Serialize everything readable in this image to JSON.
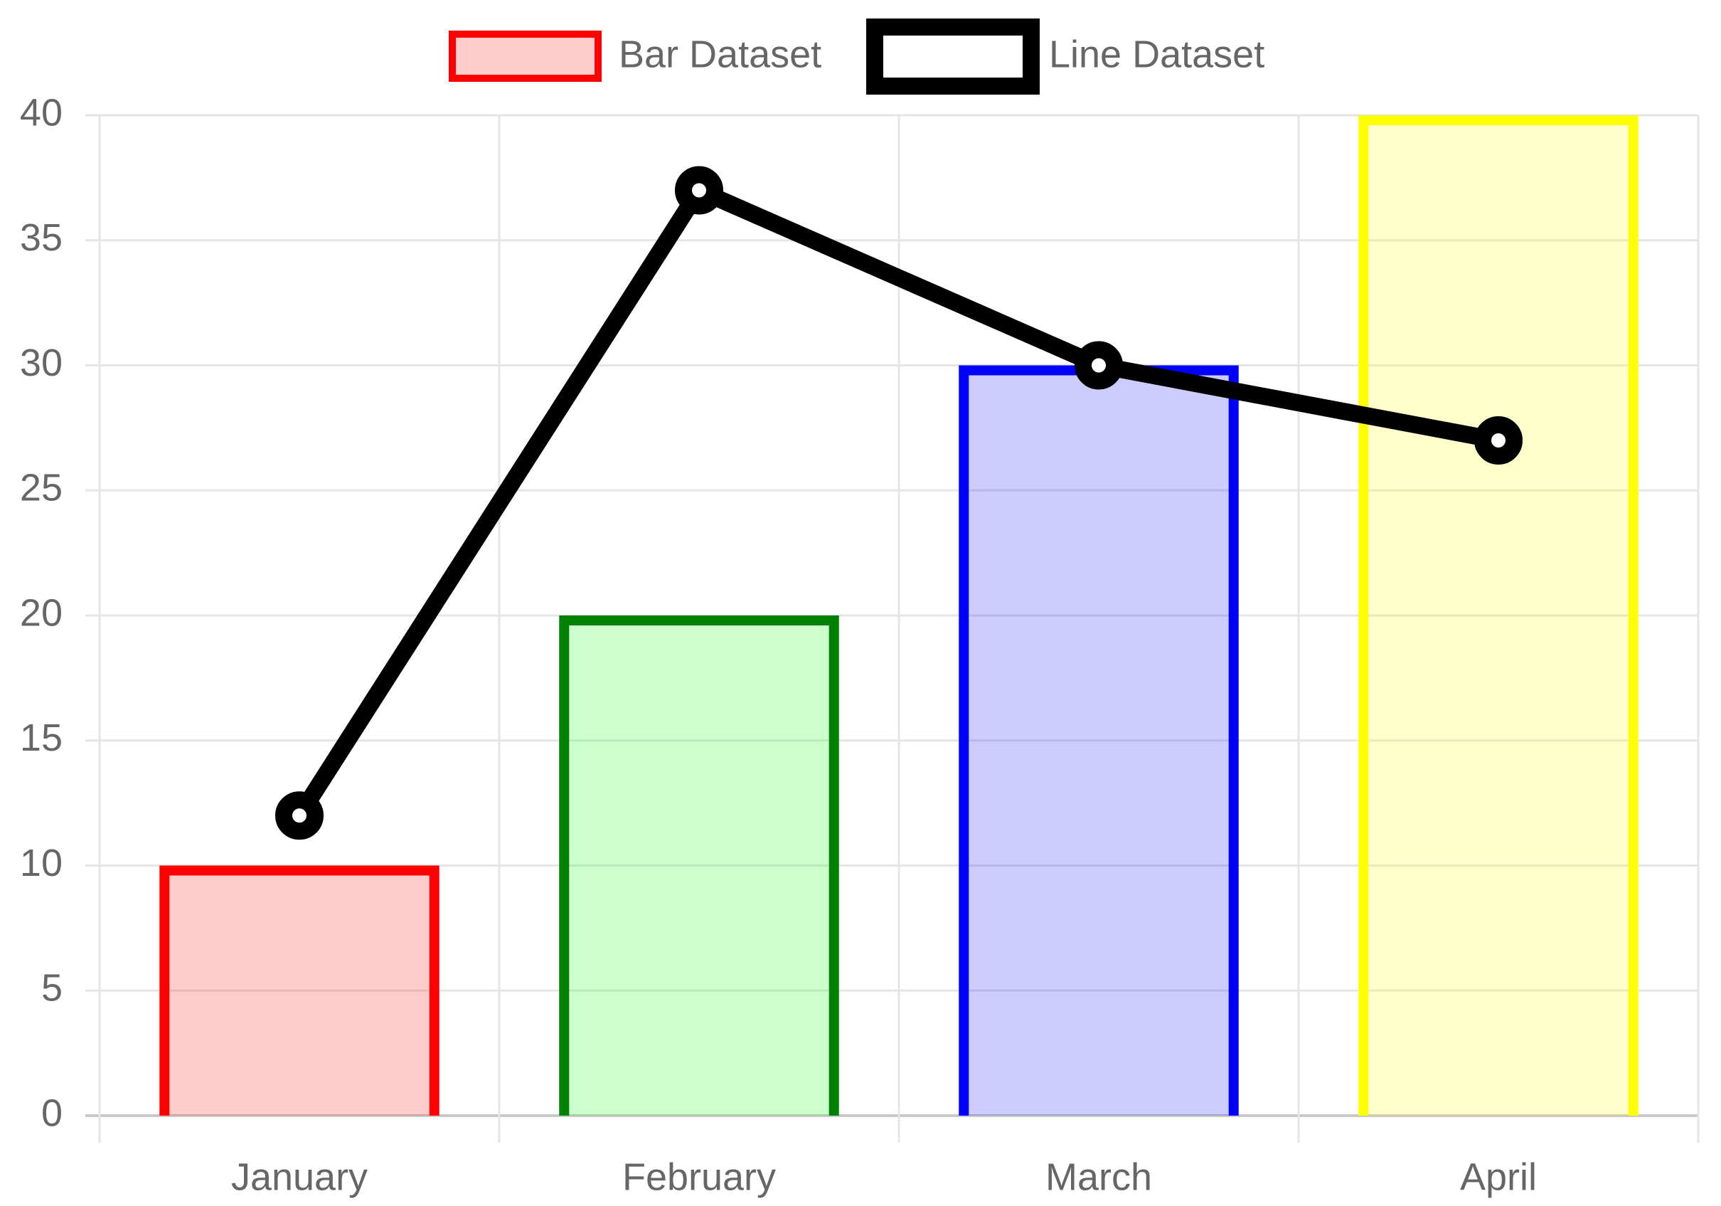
{
  "chart_data": {
    "type": "bar",
    "categories": [
      "January",
      "February",
      "March",
      "April"
    ],
    "series": [
      {
        "name": "Bar Dataset",
        "kind": "bar",
        "values": [
          10,
          20,
          30,
          40
        ],
        "border_colors": [
          "#ff0000",
          "#008000",
          "#0000ff",
          "#ffff00"
        ],
        "fill_colors": [
          "rgba(255,0,0,0.2)",
          "rgba(0,255,0,0.2)",
          "rgba(0,0,255,0.2)",
          "rgba(255,255,0,0.2)"
        ]
      },
      {
        "name": "Line Dataset",
        "kind": "line",
        "values": [
          12,
          37,
          30,
          27
        ],
        "color": "#000000",
        "fill_color": "#ffffff"
      }
    ],
    "ylim": [
      0,
      40
    ],
    "yticks": [
      "0",
      "5",
      "10",
      "15",
      "20",
      "25",
      "30",
      "35",
      "40"
    ],
    "grid": true,
    "legend_position": "top",
    "text_color": "#666666",
    "grid_color": "#e5e5e5"
  }
}
